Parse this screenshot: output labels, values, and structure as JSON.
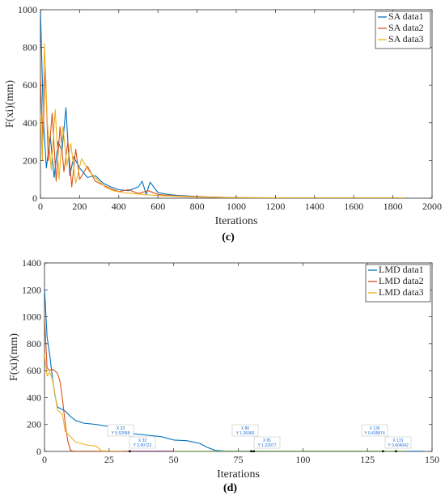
{
  "colors": {
    "s1": "#0072BD",
    "s2": "#D95319",
    "s3": "#EDB120",
    "s4": "#77AC30",
    "s5": "#7E2F8E",
    "axis": "#262626"
  },
  "chart_data": [
    {
      "type": "line",
      "panel_label": "(c)",
      "xlabel": "Iterations",
      "ylabel": "F(xi)(mm)",
      "xlim": [
        0,
        2000
      ],
      "ylim": [
        0,
        1000
      ],
      "xticks": [
        0,
        200,
        400,
        600,
        800,
        1000,
        1200,
        1400,
        1600,
        1800,
        2000
      ],
      "yticks": [
        0,
        200,
        400,
        600,
        800,
        1000
      ],
      "grid": false,
      "legend_position": "top-right",
      "series": [
        {
          "name": "SA data1",
          "x": [
            0,
            15,
            30,
            50,
            70,
            90,
            110,
            130,
            150,
            170,
            200,
            240,
            280,
            320,
            360,
            400,
            450,
            500,
            520,
            540,
            560,
            600,
            650,
            700,
            750,
            800,
            900,
            1000,
            1100,
            1200,
            1400,
            1600,
            1880
          ],
          "values": [
            1000,
            420,
            160,
            330,
            110,
            300,
            250,
            480,
            120,
            220,
            160,
            110,
            120,
            80,
            60,
            45,
            40,
            60,
            90,
            20,
            85,
            30,
            20,
            15,
            12,
            8,
            5,
            3,
            2,
            1,
            1,
            1,
            1
          ]
        },
        {
          "name": "SA data2",
          "x": [
            0,
            12,
            25,
            40,
            60,
            80,
            100,
            120,
            140,
            160,
            180,
            200,
            240,
            280,
            320,
            360,
            400,
            450,
            500,
            550,
            600,
            650,
            700,
            800,
            900,
            1000,
            1200,
            1400,
            1600,
            1860
          ],
          "values": [
            650,
            300,
            700,
            200,
            450,
            90,
            380,
            140,
            300,
            60,
            260,
            100,
            170,
            90,
            70,
            50,
            35,
            45,
            25,
            40,
            20,
            15,
            12,
            8,
            5,
            3,
            2,
            1,
            1,
            1
          ]
        },
        {
          "name": "SA data3",
          "x": [
            0,
            10,
            20,
            35,
            55,
            75,
            95,
            115,
            135,
            155,
            180,
            210,
            250,
            290,
            330,
            370,
            420,
            470,
            520,
            580,
            640,
            700,
            800,
            900,
            1000,
            1200,
            1400,
            1600,
            1870
          ],
          "values": [
            450,
            200,
            820,
            400,
            150,
            470,
            100,
            380,
            170,
            290,
            80,
            210,
            140,
            100,
            60,
            40,
            30,
            25,
            20,
            15,
            12,
            10,
            6,
            4,
            3,
            2,
            1,
            1,
            1
          ]
        }
      ]
    },
    {
      "type": "line",
      "panel_label": "(d)",
      "xlabel": "Iterations",
      "ylabel": "F(xi)(mm)",
      "xlim": [
        0,
        150
      ],
      "ylim": [
        0,
        1400
      ],
      "xticks": [
        0,
        25,
        50,
        75,
        100,
        125,
        150
      ],
      "yticks": [
        0,
        200,
        400,
        600,
        800,
        1000,
        1200,
        1400
      ],
      "grid": false,
      "legend_position": "top-right",
      "series": [
        {
          "name": "LMD data1",
          "x": [
            0,
            1,
            2,
            3,
            4,
            5,
            8,
            10,
            12,
            15,
            20,
            25,
            30,
            35,
            40,
            45,
            50,
            55,
            60,
            63,
            66,
            70,
            80,
            90,
            100,
            110,
            120,
            130,
            140,
            147
          ],
          "values": [
            1210,
            850,
            720,
            560,
            420,
            330,
            300,
            260,
            230,
            210,
            200,
            185,
            150,
            130,
            120,
            110,
            85,
            80,
            60,
            30,
            8,
            3,
            2,
            1,
            1,
            1,
            1,
            1,
            1,
            1
          ]
        },
        {
          "name": "LMD data2",
          "x": [
            0,
            1,
            2,
            3,
            4,
            5,
            6,
            7,
            8,
            9,
            10,
            11,
            13,
            20,
            30,
            40,
            50
          ],
          "values": [
            1000,
            620,
            600,
            610,
            600,
            580,
            520,
            380,
            210,
            80,
            10,
            2,
            1,
            1,
            1,
            1,
            1
          ]
        },
        {
          "name": "LMD data3",
          "x": [
            0,
            1,
            2,
            3,
            4,
            5,
            7,
            8,
            10,
            12,
            14,
            17,
            20,
            22,
            25,
            30
          ],
          "values": [
            720,
            560,
            590,
            540,
            430,
            310,
            270,
            150,
            110,
            70,
            60,
            45,
            40,
            5,
            2,
            1
          ]
        },
        {
          "x": [
            50,
            60,
            70,
            80,
            90,
            100,
            110,
            120,
            130,
            140
          ],
          "values": [
            1,
            1,
            1,
            1,
            1,
            1,
            1,
            1,
            1,
            1
          ]
        },
        {
          "x": [
            33,
            40,
            50
          ],
          "values": [
            1,
            1,
            1
          ]
        }
      ],
      "datatips": [
        {
          "x_text": "X 33",
          "y_text": "Y 5.52588"
        },
        {
          "x_text": "X 33",
          "y_text": "Y 3.90722"
        },
        {
          "x_text": "X 80",
          "y_text": "Y 1.26966"
        },
        {
          "x_text": "X 81",
          "y_text": "Y 1.22077"
        },
        {
          "x_text": "X 136",
          "y_text": "Y 0.435874"
        },
        {
          "x_text": "X 131",
          "y_text": "Y 0.404042"
        }
      ]
    }
  ]
}
